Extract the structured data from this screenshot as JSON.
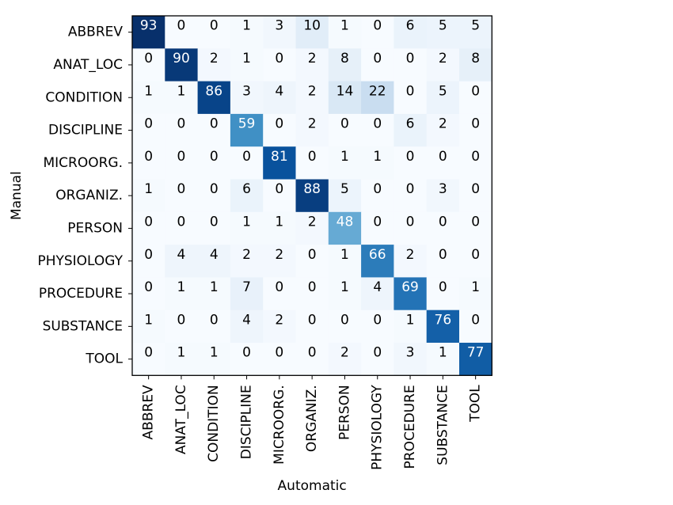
{
  "chart_data": {
    "type": "heatmap",
    "title": "",
    "xlabel": "Automatic",
    "ylabel": "Manual",
    "x_categories": [
      "ABBREV",
      "ANAT_LOC",
      "CONDITION",
      "DISCIPLINE",
      "MICROORG.",
      "ORGANIZ.",
      "PERSON",
      "PHYSIOLOGY",
      "PROCEDURE",
      "SUBSTANCE",
      "TOOL"
    ],
    "y_categories": [
      "ABBREV",
      "ANAT_LOC",
      "CONDITION",
      "DISCIPLINE",
      "MICROORG.",
      "ORGANIZ.",
      "PERSON",
      "PHYSIOLOGY",
      "PROCEDURE",
      "SUBSTANCE",
      "TOOL"
    ],
    "values": [
      [
        93,
        0,
        0,
        1,
        3,
        10,
        1,
        0,
        6,
        5,
        5
      ],
      [
        0,
        90,
        2,
        1,
        0,
        2,
        8,
        0,
        0,
        2,
        8
      ],
      [
        1,
        1,
        86,
        3,
        4,
        2,
        14,
        22,
        0,
        5,
        0
      ],
      [
        0,
        0,
        0,
        59,
        0,
        2,
        0,
        0,
        6,
        2,
        0
      ],
      [
        0,
        0,
        0,
        0,
        81,
        0,
        1,
        1,
        0,
        0,
        0
      ],
      [
        1,
        0,
        0,
        6,
        0,
        88,
        5,
        0,
        0,
        3,
        0
      ],
      [
        0,
        0,
        0,
        1,
        1,
        2,
        48,
        0,
        0,
        0,
        0
      ],
      [
        0,
        4,
        4,
        2,
        2,
        0,
        1,
        66,
        2,
        0,
        0
      ],
      [
        0,
        1,
        1,
        7,
        0,
        0,
        1,
        4,
        69,
        0,
        1
      ],
      [
        1,
        0,
        0,
        4,
        2,
        0,
        0,
        0,
        1,
        76,
        0
      ],
      [
        0,
        1,
        1,
        0,
        0,
        0,
        2,
        0,
        3,
        1,
        77
      ]
    ],
    "colormap": "Blues",
    "value_range": [
      0,
      93
    ],
    "grid": false
  }
}
